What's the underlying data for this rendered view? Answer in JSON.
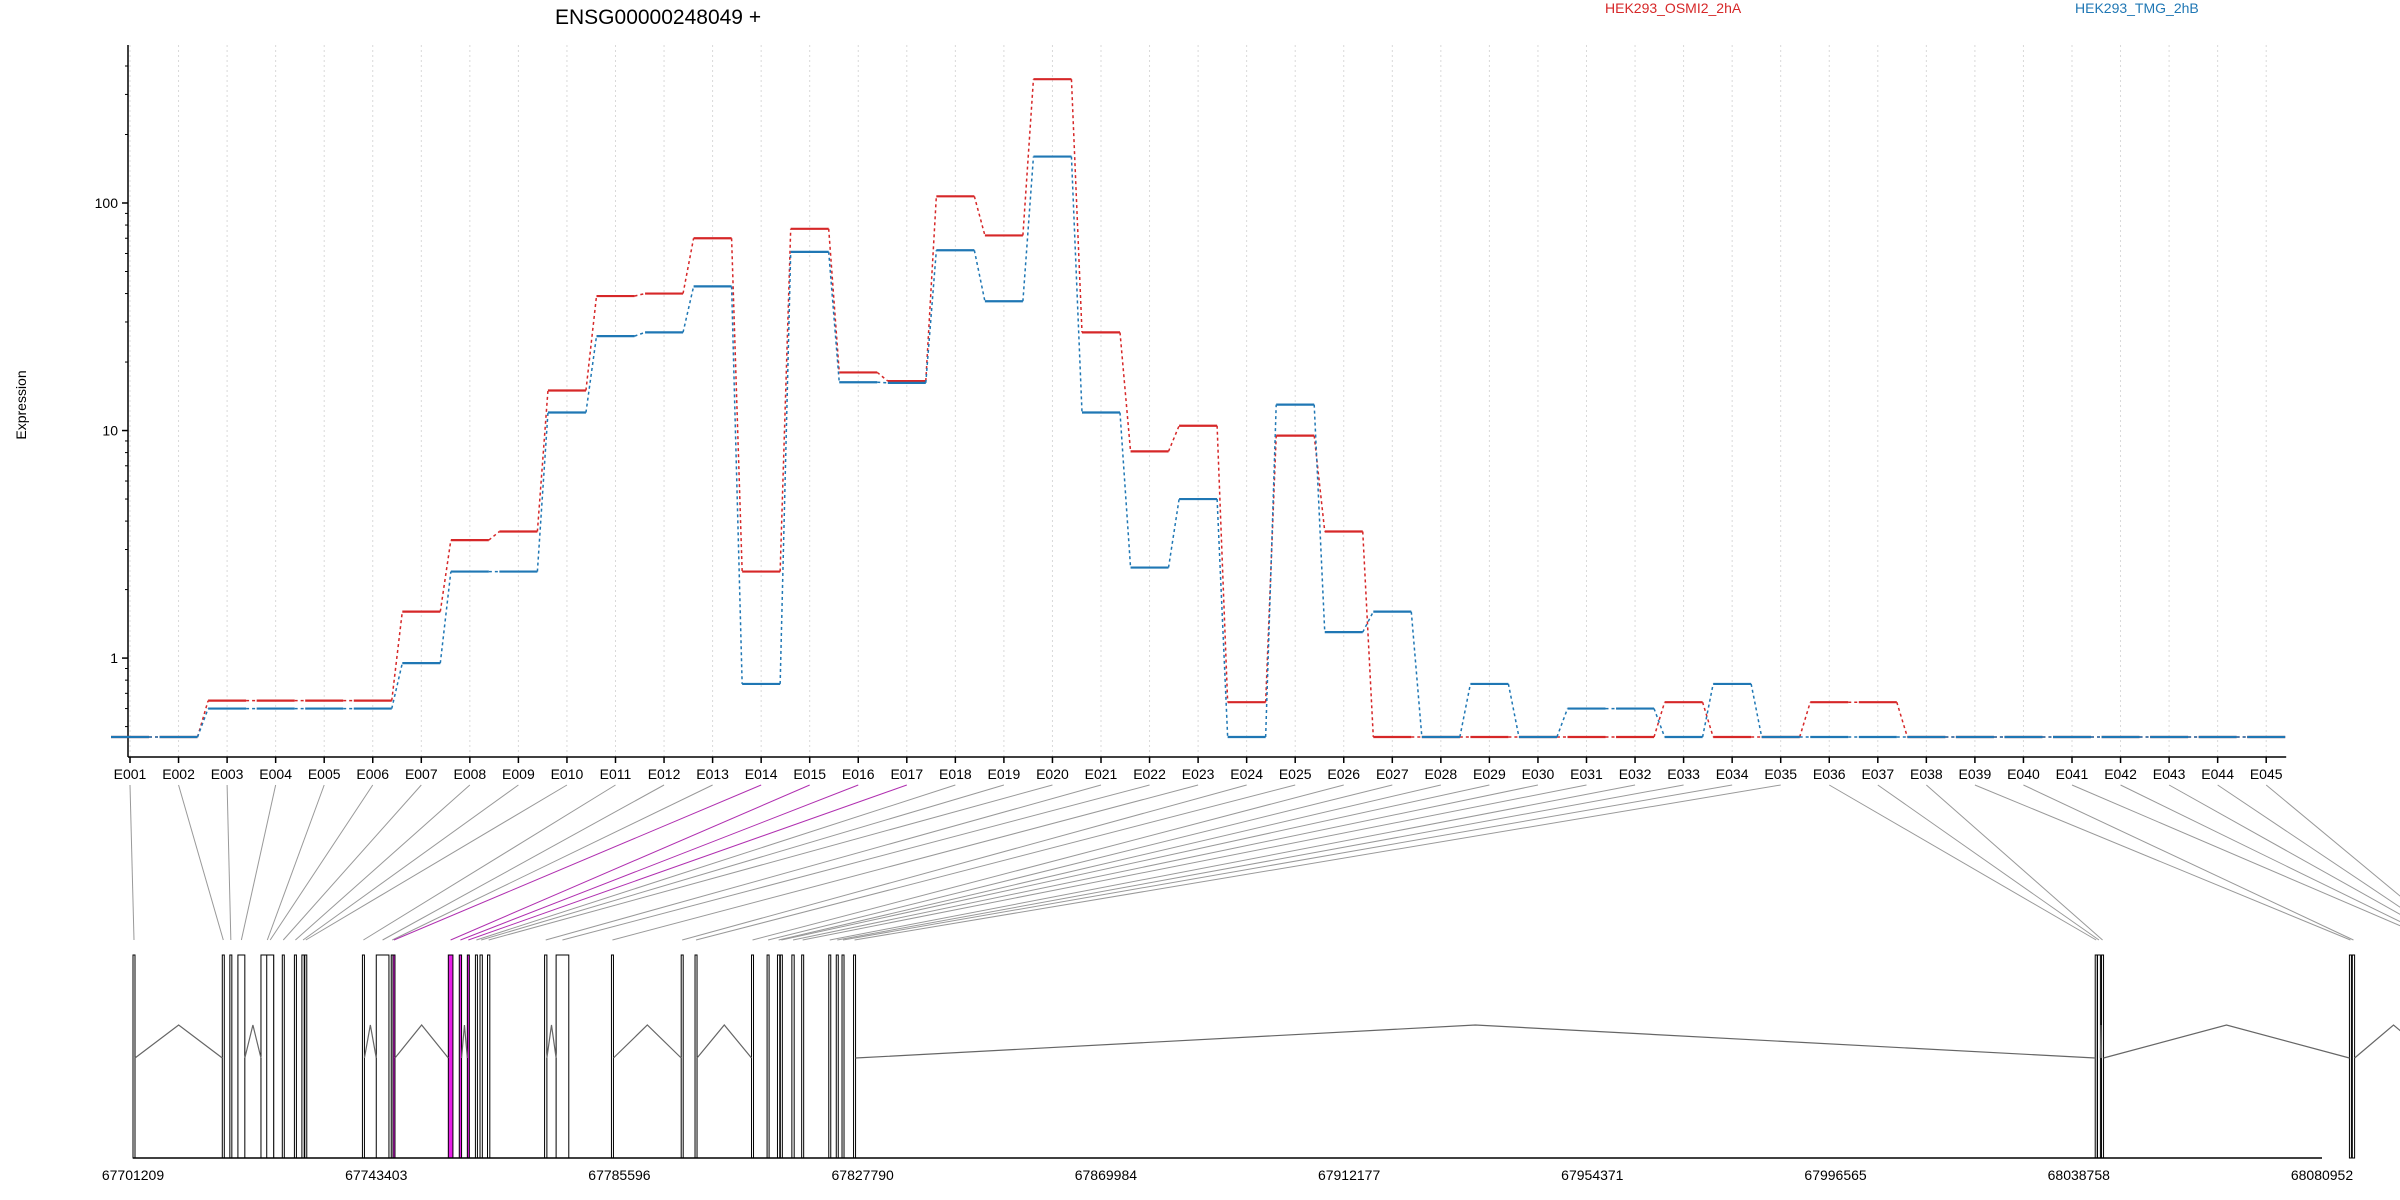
{
  "title": "ENSG00000248049 +",
  "colors": {
    "HEK293_OSMI2_2hA": "#d62728",
    "HEK293_TMG_2hB": "#1f77b4",
    "highlight": "#e61ee6",
    "highlight_line": "#b030b0",
    "axis": "#000000",
    "grid": "#d9d9d9",
    "gene_line": "#666666",
    "connector": "#999999"
  },
  "chart_data": {
    "type": "line",
    "title": "ENSG00000248049 +",
    "xlabel": "",
    "ylabel": "Expression",
    "y_scale": "log",
    "ylim": [
      0.45,
      400
    ],
    "y_ticks": [
      1,
      10,
      100
    ],
    "y_tick_labels": [
      "1",
      "10",
      "100"
    ],
    "grid": "vertical dotted",
    "legend": "top",
    "categories": [
      "E001",
      "E002",
      "E003",
      "E004",
      "E005",
      "E006",
      "E007",
      "E008",
      "E009",
      "E010",
      "E011",
      "E012",
      "E013",
      "E014",
      "E015",
      "E016",
      "E017",
      "E018",
      "E019",
      "E020",
      "E021",
      "E022",
      "E023",
      "E024",
      "E025",
      "E026",
      "E027",
      "E028",
      "E029",
      "E030",
      "E031",
      "E032",
      "E033",
      "E034",
      "E035",
      "E036",
      "E037",
      "E038",
      "E039",
      "E040",
      "E041",
      "E042",
      "E043",
      "E044",
      "E045"
    ],
    "series": [
      {
        "name": "HEK293_OSMI2_2hA",
        "color": "#d62728",
        "values": [
          0.45,
          0.45,
          0.65,
          0.65,
          0.65,
          0.65,
          1.6,
          3.3,
          3.6,
          15,
          39,
          40,
          70,
          2.4,
          77,
          18,
          16.5,
          107,
          72,
          350,
          27,
          8.1,
          10.5,
          0.64,
          9.5,
          3.6,
          0.45,
          0.45,
          0.45,
          0.45,
          0.45,
          0.45,
          0.64,
          0.45,
          0.45,
          0.64,
          0.64,
          0.45,
          0.45,
          0.45,
          0.45,
          0.45,
          0.45,
          0.45,
          0.45
        ]
      },
      {
        "name": "HEK293_TMG_2hB",
        "color": "#1f77b4",
        "values": [
          0.45,
          0.45,
          0.6,
          0.6,
          0.6,
          0.6,
          0.95,
          2.4,
          2.4,
          12,
          26,
          27,
          43,
          0.77,
          61,
          16.3,
          16.2,
          62,
          37,
          160,
          12,
          2.5,
          5,
          0.45,
          13,
          1.3,
          1.6,
          0.45,
          0.77,
          0.45,
          0.6,
          0.6,
          0.45,
          0.77,
          0.45,
          0.45,
          0.45,
          0.45,
          0.45,
          0.45,
          0.45,
          0.45,
          0.45,
          0.45,
          0.45
        ]
      }
    ]
  },
  "gene_model": {
    "coordinate_start": 67701209,
    "coordinate_end": 68080952,
    "axis_labels": [
      "67701209",
      "67743403",
      "67785596",
      "67827790",
      "67869984",
      "67912177",
      "67954371",
      "67996565",
      "68038758",
      "68080952"
    ],
    "highlighted_exons": [
      "E014",
      "E015",
      "E016",
      "E017"
    ]
  }
}
